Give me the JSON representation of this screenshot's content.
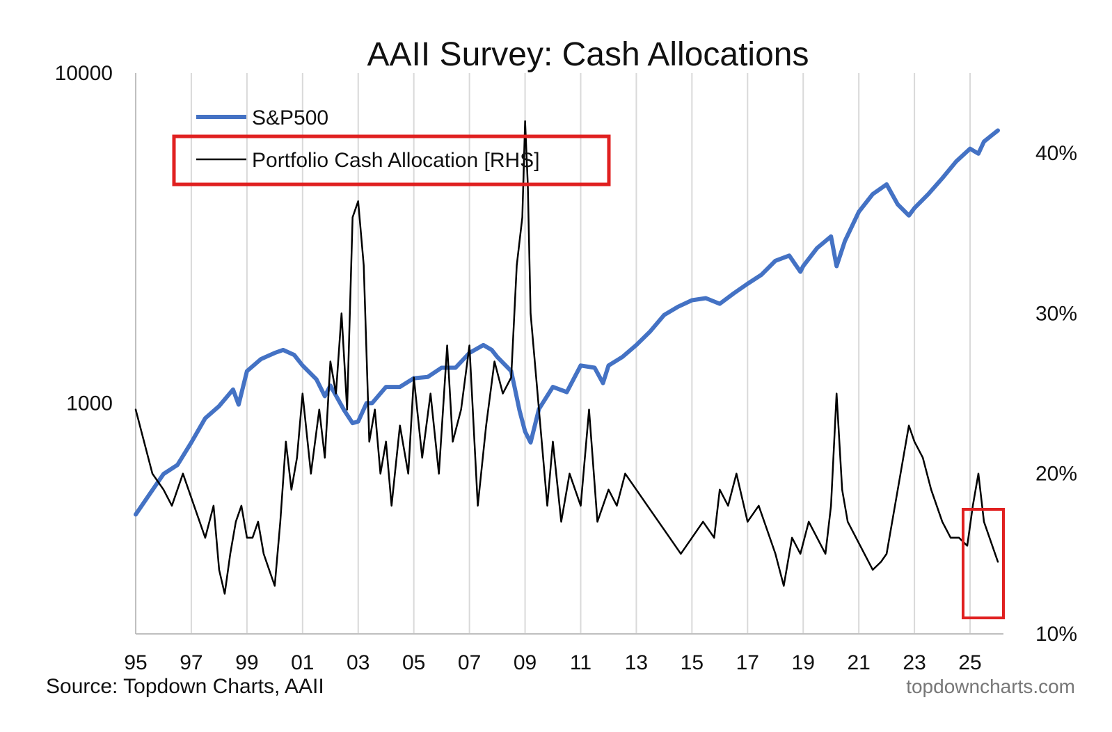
{
  "chart_data": {
    "type": "line",
    "title": "AAII Survey: Cash Allocations",
    "x_tick_labels": [
      "95",
      "97",
      "99",
      "01",
      "03",
      "05",
      "07",
      "09",
      "11",
      "13",
      "15",
      "17",
      "19",
      "21",
      "23",
      "25"
    ],
    "xlim": [
      1995,
      2026.2
    ],
    "left_axis": {
      "scale": "log",
      "ylim": [
        200,
        10000
      ],
      "tick_labels": [
        "10000",
        "1000"
      ],
      "tick_values": [
        10000,
        1000
      ]
    },
    "right_axis": {
      "scale": "linear",
      "ylim": [
        10,
        45
      ],
      "tick_labels": [
        "40%",
        "30%",
        "20%",
        "10%"
      ],
      "tick_values": [
        40,
        30,
        20,
        10
      ]
    },
    "grid": "vertical",
    "legend_position": "top-left",
    "series": [
      {
        "name": "S&P500",
        "axis": "left",
        "color": "#4472C4",
        "x": [
          1995.0,
          1995.5,
          1996.0,
          1996.5,
          1997.0,
          1997.5,
          1998.0,
          1998.5,
          1998.7,
          1999.0,
          1999.5,
          2000.0,
          2000.3,
          2000.7,
          2001.0,
          2001.5,
          2001.8,
          2002.0,
          2002.5,
          2002.8,
          2003.0,
          2003.3,
          2003.5,
          2004.0,
          2004.5,
          2005.0,
          2005.5,
          2006.0,
          2006.5,
          2007.0,
          2007.5,
          2007.8,
          2008.0,
          2008.5,
          2008.8,
          2009.0,
          2009.2,
          2009.5,
          2010.0,
          2010.5,
          2011.0,
          2011.5,
          2011.8,
          2012.0,
          2012.5,
          2013.0,
          2013.5,
          2014.0,
          2014.5,
          2015.0,
          2015.5,
          2016.0,
          2016.5,
          2017.0,
          2017.5,
          2018.0,
          2018.5,
          2018.9,
          2019.0,
          2019.5,
          2020.0,
          2020.2,
          2020.5,
          2021.0,
          2021.5,
          2022.0,
          2022.4,
          2022.8,
          2023.0,
          2023.5,
          2024.0,
          2024.5,
          2025.0,
          2025.3,
          2025.5,
          2025.8,
          2026.0
        ],
        "values": [
          460,
          530,
          610,
          650,
          760,
          900,
          980,
          1100,
          990,
          1250,
          1360,
          1420,
          1450,
          1400,
          1300,
          1180,
          1050,
          1130,
          950,
          870,
          880,
          1000,
          1000,
          1120,
          1120,
          1190,
          1200,
          1280,
          1280,
          1420,
          1500,
          1450,
          1380,
          1250,
          950,
          820,
          760,
          960,
          1120,
          1080,
          1300,
          1280,
          1150,
          1300,
          1380,
          1500,
          1650,
          1850,
          1960,
          2050,
          2080,
          2000,
          2150,
          2300,
          2450,
          2700,
          2800,
          2500,
          2600,
          2950,
          3200,
          2600,
          3100,
          3800,
          4300,
          4600,
          4000,
          3700,
          3900,
          4300,
          4800,
          5400,
          5900,
          5700,
          6200,
          6500,
          6700
        ]
      },
      {
        "name": "Portfolio Cash Allocation [RHS]",
        "axis": "right",
        "color": "#000000",
        "x": [
          1995.0,
          1995.3,
          1995.6,
          1996.0,
          1996.3,
          1996.7,
          1997.0,
          1997.3,
          1997.5,
          1997.8,
          1998.0,
          1998.2,
          1998.4,
          1998.6,
          1998.8,
          1999.0,
          1999.2,
          1999.4,
          1999.6,
          1999.8,
          2000.0,
          2000.2,
          2000.4,
          2000.6,
          2000.8,
          2001.0,
          2001.3,
          2001.6,
          2001.8,
          2002.0,
          2002.2,
          2002.4,
          2002.6,
          2002.8,
          2003.0,
          2003.2,
          2003.4,
          2003.6,
          2003.8,
          2004.0,
          2004.2,
          2004.5,
          2004.8,
          2005.0,
          2005.3,
          2005.6,
          2005.9,
          2006.2,
          2006.4,
          2006.7,
          2007.0,
          2007.3,
          2007.6,
          2007.9,
          2008.2,
          2008.5,
          2008.7,
          2008.9,
          2009.0,
          2009.1,
          2009.2,
          2009.4,
          2009.6,
          2009.8,
          2010.0,
          2010.3,
          2010.6,
          2011.0,
          2011.3,
          2011.6,
          2012.0,
          2012.3,
          2012.6,
          2013.0,
          2013.4,
          2013.8,
          2014.2,
          2014.6,
          2015.0,
          2015.4,
          2015.8,
          2016.0,
          2016.3,
          2016.6,
          2017.0,
          2017.4,
          2017.8,
          2018.0,
          2018.3,
          2018.6,
          2018.9,
          2019.2,
          2019.5,
          2019.8,
          2020.0,
          2020.2,
          2020.4,
          2020.6,
          2020.9,
          2021.2,
          2021.5,
          2021.8,
          2022.0,
          2022.2,
          2022.5,
          2022.8,
          2023.0,
          2023.3,
          2023.6,
          2024.0,
          2024.3,
          2024.6,
          2024.9,
          2025.1,
          2025.3,
          2025.5,
          2025.7,
          2025.9,
          2026.0
        ],
        "values": [
          24,
          22,
          20,
          19,
          18,
          20,
          18.5,
          17,
          16,
          18,
          14,
          12.5,
          15,
          17,
          18,
          16,
          16,
          17,
          15,
          14,
          13,
          17,
          22,
          19,
          21,
          25,
          20,
          24,
          21,
          27,
          25,
          30,
          24,
          36,
          37,
          33,
          22,
          24,
          20,
          22,
          18,
          23,
          20,
          26,
          21,
          25,
          20,
          28,
          22,
          24,
          28,
          18,
          23,
          27,
          25,
          26,
          33,
          36,
          42,
          38,
          30,
          26,
          22,
          18,
          22,
          17,
          20,
          18,
          24,
          17,
          19,
          18,
          20,
          19,
          18,
          17,
          16,
          15,
          16,
          17,
          16,
          19,
          18,
          20,
          17,
          18,
          16,
          15,
          13,
          16,
          15,
          17,
          16,
          15,
          18,
          25,
          19,
          17,
          16,
          15,
          14,
          14.5,
          15,
          17,
          20,
          23,
          22,
          21,
          19,
          17,
          16,
          16,
          15.5,
          18,
          20,
          17,
          16,
          15,
          14.5
        ]
      }
    ],
    "annotations": [
      "red box around legend entry 'Portfolio Cash Allocation [RHS]'",
      "red box around 2025 portion of cash allocation line"
    ]
  },
  "legend": {
    "items": [
      {
        "label": "S&P500",
        "color": "#4472C4"
      },
      {
        "label": "Portfolio Cash Allocation [RHS]",
        "color": "#000000"
      }
    ]
  },
  "footer": {
    "source": "Source: Topdown Charts, AAII",
    "brand": "topdowncharts.com"
  },
  "colors": {
    "highlight_box": "#E02020",
    "grid": "#D9D9D9",
    "axis": "#BFBFBF"
  }
}
